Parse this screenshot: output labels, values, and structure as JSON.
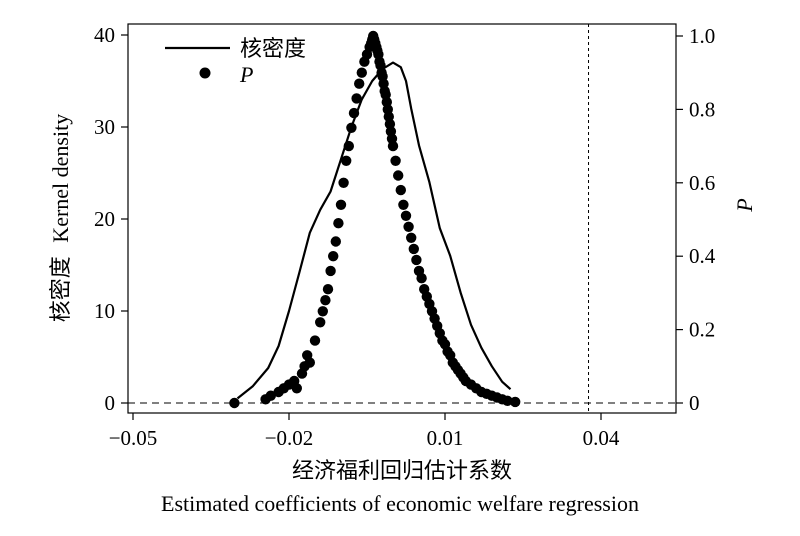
{
  "chart_data": {
    "type": "line+scatter",
    "xlabel_cn": "经济福利回归估计系数",
    "xlabel_en": "Estimated coefficients of economic welfare regression",
    "ylabel_left_cn": "核密度",
    "ylabel_left_en": "Kernel density",
    "ylabel_right": "P",
    "xlim": [
      -0.05,
      0.05
    ],
    "ylim_left": [
      0,
      40
    ],
    "ylim_right": [
      0,
      1.0
    ],
    "x_ticks": [
      "−0.05",
      "−0.02",
      "0.01",
      "0.04"
    ],
    "x_tick_values": [
      -0.05,
      -0.02,
      0.01,
      0.04
    ],
    "y_left_ticks": [
      "0",
      "10",
      "20",
      "30",
      "40"
    ],
    "y_left_tick_values": [
      0,
      10,
      20,
      30,
      40
    ],
    "y_right_ticks": [
      "0",
      "0.2",
      "0.4",
      "0.6",
      "0.8",
      "1.0"
    ],
    "y_right_tick_values": [
      0,
      0.2,
      0.4,
      0.6,
      0.8,
      1.0
    ],
    "vertical_reference_x": 0.0376,
    "horizontal_reference_y": 0,
    "legend": {
      "placement": "top-left",
      "entries": [
        {
          "label": "核密度",
          "marker": "line"
        },
        {
          "label": "P",
          "marker": "dot"
        }
      ]
    },
    "series": [
      {
        "name": "核密度",
        "kind": "line",
        "axis": "left",
        "x": [
          -0.0299,
          -0.027,
          -0.024,
          -0.022,
          -0.02,
          -0.018,
          -0.016,
          -0.014,
          -0.012,
          -0.01,
          -0.008,
          -0.006,
          -0.004,
          -0.002,
          0.0,
          0.0015,
          0.0025,
          0.0035,
          0.005,
          0.007,
          0.009,
          0.011,
          0.013,
          0.015,
          0.017,
          0.019,
          0.021,
          0.0226
        ],
        "values": [
          0.5,
          1.8,
          3.8,
          6.2,
          10.0,
          14.2,
          18.5,
          21.0,
          23.0,
          26.5,
          30.0,
          33.0,
          35.0,
          36.3,
          37.0,
          36.5,
          35.0,
          32.0,
          28.0,
          24.0,
          19.0,
          16.0,
          12.0,
          8.5,
          6.0,
          4.0,
          2.3,
          1.5
        ]
      },
      {
        "name": "P",
        "kind": "scatter",
        "axis": "right",
        "x": [
          -0.0305,
          -0.0245,
          -0.0235,
          -0.022,
          -0.021,
          -0.02,
          -0.019,
          -0.0185,
          -0.0175,
          -0.017,
          -0.0165,
          -0.016,
          -0.015,
          -0.014,
          -0.0135,
          -0.013,
          -0.0125,
          -0.012,
          -0.0115,
          -0.011,
          -0.0105,
          -0.01,
          -0.0095,
          -0.009,
          -0.0085,
          -0.008,
          -0.0075,
          -0.007,
          -0.0065,
          -0.006,
          -0.0055,
          -0.005,
          -0.0045,
          -0.0042,
          -0.004,
          -0.0038,
          -0.0036,
          -0.0034,
          -0.0032,
          -0.003,
          -0.0028,
          -0.0026,
          -0.0024,
          -0.0022,
          -0.002,
          -0.0018,
          -0.0016,
          -0.0014,
          -0.0012,
          -0.001,
          -0.0008,
          -0.0006,
          -0.0004,
          -0.0002,
          0.0,
          0.0005,
          0.001,
          0.0015,
          0.002,
          0.0025,
          0.003,
          0.0035,
          0.004,
          0.0045,
          0.005,
          0.0055,
          0.006,
          0.0065,
          0.007,
          0.0075,
          0.008,
          0.0085,
          0.009,
          0.0095,
          0.01,
          0.0105,
          0.011,
          0.0115,
          0.012,
          0.0125,
          0.013,
          0.0135,
          0.014,
          0.015,
          0.016,
          0.017,
          0.018,
          0.019,
          0.02,
          0.021,
          0.022,
          0.0235
        ],
        "values": [
          0.0,
          0.01,
          0.02,
          0.03,
          0.04,
          0.05,
          0.06,
          0.04,
          0.08,
          0.1,
          0.13,
          0.11,
          0.17,
          0.22,
          0.25,
          0.28,
          0.31,
          0.36,
          0.4,
          0.44,
          0.49,
          0.54,
          0.6,
          0.66,
          0.7,
          0.75,
          0.79,
          0.83,
          0.87,
          0.9,
          0.93,
          0.95,
          0.97,
          0.98,
          0.99,
          1.0,
          0.99,
          0.98,
          0.97,
          0.96,
          0.95,
          0.93,
          0.92,
          0.9,
          0.89,
          0.87,
          0.85,
          0.84,
          0.82,
          0.8,
          0.78,
          0.76,
          0.74,
          0.72,
          0.7,
          0.66,
          0.62,
          0.58,
          0.54,
          0.51,
          0.48,
          0.45,
          0.42,
          0.39,
          0.36,
          0.34,
          0.31,
          0.29,
          0.27,
          0.25,
          0.23,
          0.21,
          0.19,
          0.17,
          0.16,
          0.14,
          0.13,
          0.11,
          0.1,
          0.09,
          0.08,
          0.07,
          0.06,
          0.05,
          0.04,
          0.03,
          0.025,
          0.02,
          0.015,
          0.01,
          0.006,
          0.003
        ]
      }
    ]
  }
}
